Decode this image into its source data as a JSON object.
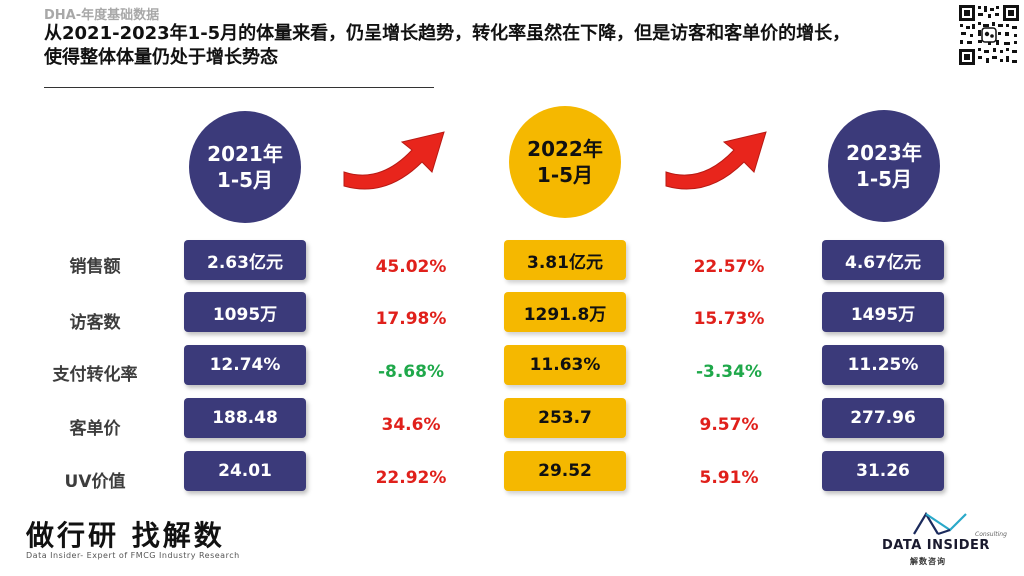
{
  "subtitle": "DHA-年度基础数据",
  "headline": "从2021-2023年1-5月的体量来看，仍呈增长趋势，转化率虽然在下降，但是访客和客单价的增长，使得整体体量仍处于增长势态",
  "years": [
    {
      "label": "2021年\n1-5月"
    },
    {
      "label": "2022年\n1-5月"
    },
    {
      "label": "2023年\n1-5月"
    }
  ],
  "rows": [
    {
      "label": "销售额",
      "y2021": "2.63亿元",
      "y2022": "3.81亿元",
      "y2023": "4.67亿元",
      "g1": "45.02%",
      "g2": "22.57%"
    },
    {
      "label": "访客数",
      "y2021": "1095万",
      "y2022": "1291.8万",
      "y2023": "1495万",
      "g1": "17.98%",
      "g2": "15.73%"
    },
    {
      "label": "支付转化率",
      "y2021": "12.74%",
      "y2022": "11.63%",
      "y2023": "11.25%",
      "g1": "-8.68%",
      "g2": "-3.34%"
    },
    {
      "label": "客单价",
      "y2021": "188.48",
      "y2022": "253.7",
      "y2023": "277.96",
      "g1": "34.6%",
      "g2": "9.57%"
    },
    {
      "label": "UV价值",
      "y2021": "24.01",
      "y2022": "29.52",
      "y2023": "31.26",
      "g1": "22.92%",
      "g2": "5.91%"
    }
  ],
  "colors": {
    "positive": "#e0201b",
    "negative": "#1fa84a",
    "navy": "#3b3a7a",
    "gold": "#f5b800",
    "arrow": "#e8251c"
  },
  "brand": {
    "title": "做行研 找解数",
    "tagline": "Data Insider- Expert of FMCG Industry Research"
  },
  "logo": {
    "consulting": "Consulting",
    "name": "DATA INSIDER",
    "cn": "解数咨询"
  }
}
